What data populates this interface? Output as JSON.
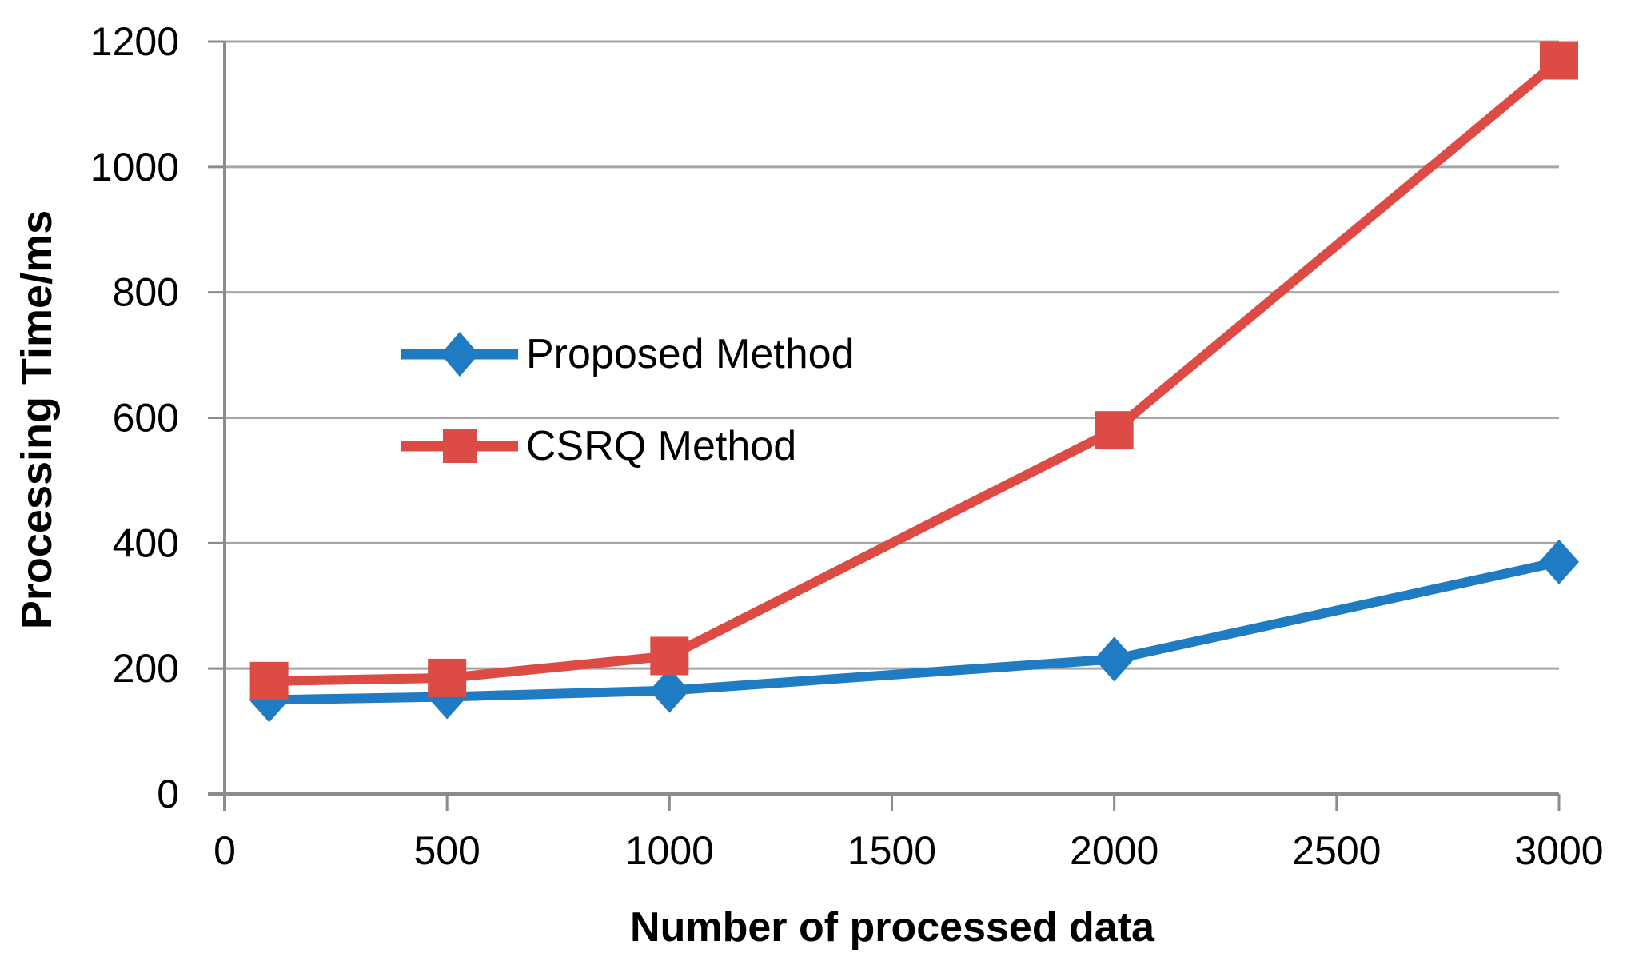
{
  "chart_data": {
    "type": "line",
    "title": "",
    "xlabel": "Number of processed data",
    "ylabel": "Processing Time/ms",
    "x": [
      100,
      500,
      1000,
      2000,
      3000
    ],
    "series": [
      {
        "name": "Proposed Method",
        "marker": "diamond",
        "color": "#1F7BC2",
        "values": [
          150,
          155,
          165,
          215,
          370
        ]
      },
      {
        "name": "CSRQ Method",
        "marker": "square",
        "color": "#DC4B44",
        "values": [
          180,
          185,
          220,
          580,
          1170
        ]
      }
    ],
    "xlim": [
      0,
      3000
    ],
    "ylim": [
      0,
      1200
    ],
    "x_ticks": [
      0,
      500,
      1000,
      1500,
      2000,
      2500,
      3000
    ],
    "y_ticks": [
      0,
      200,
      400,
      600,
      800,
      1000,
      1200
    ],
    "grid": "horizontal-only",
    "legend_position": "inside-center-left",
    "colors": {
      "gridline": "#A6A6A6",
      "axis": "#8C8C8C",
      "text": "#000000",
      "background": "#FFFFFF"
    }
  }
}
